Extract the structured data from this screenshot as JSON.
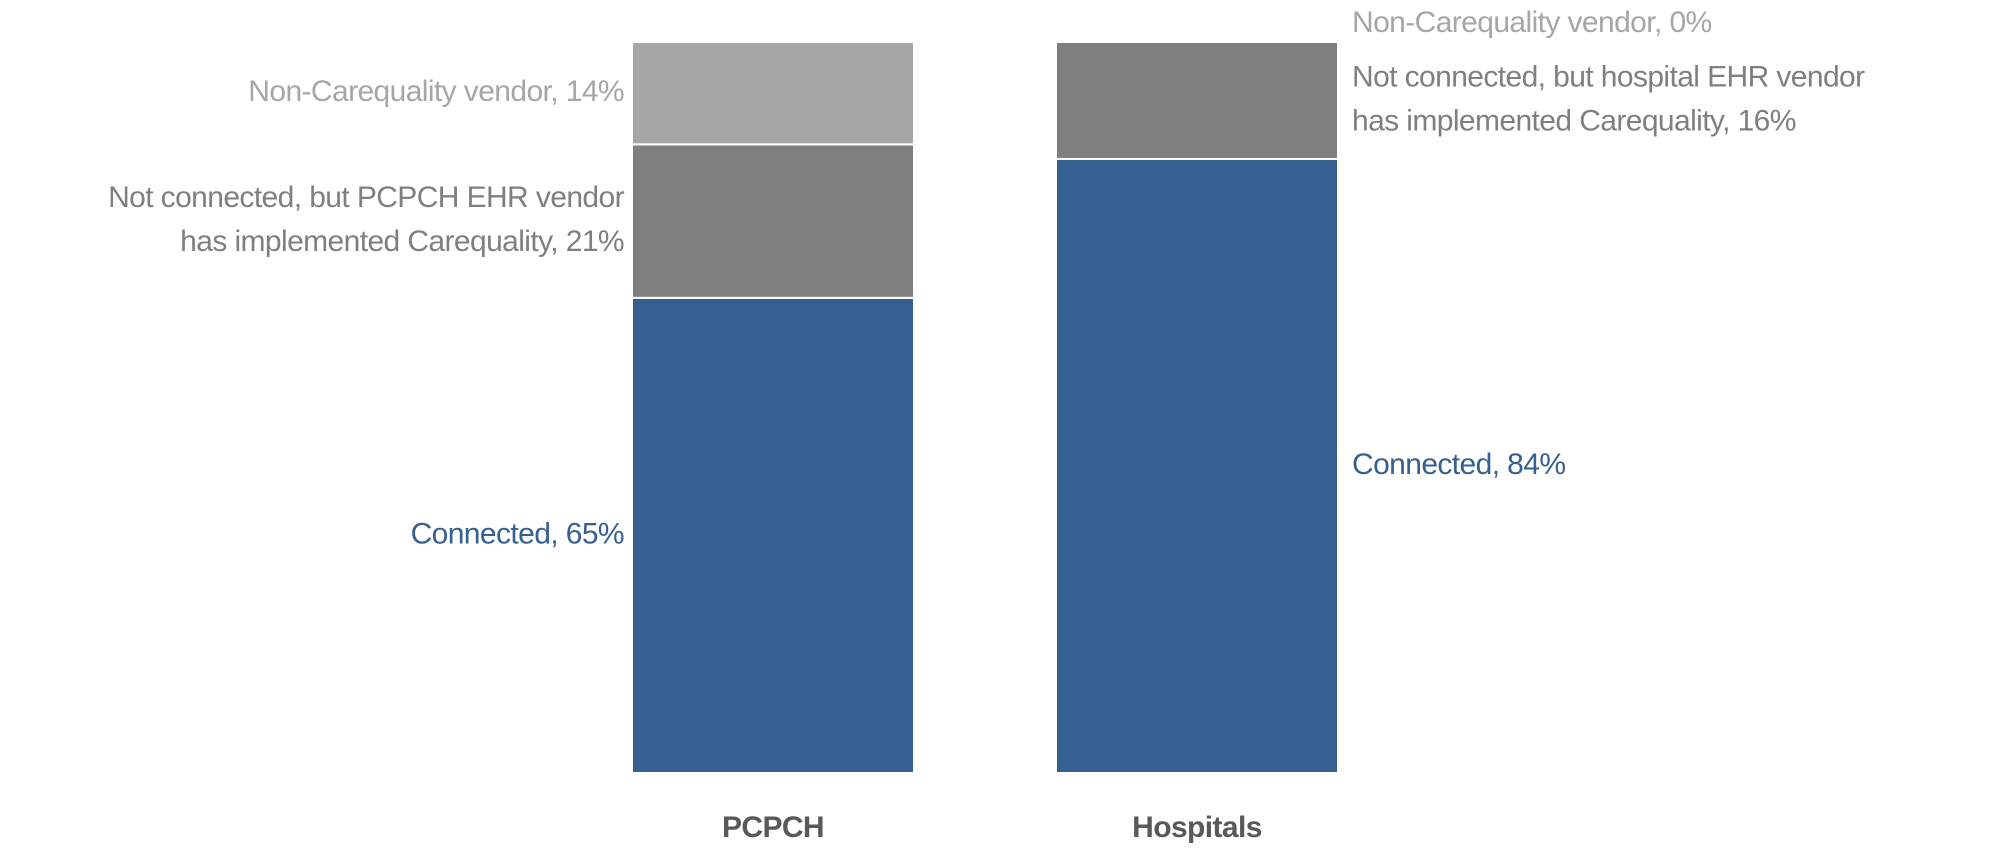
{
  "chart_data": {
    "type": "stacked_bar",
    "categories": [
      "PCPCH",
      "Hospitals"
    ],
    "ylim": [
      0,
      100
    ],
    "series": [
      {
        "color": "#36608f",
        "values": [
          65,
          84
        ],
        "value_labels": [
          [
            "Connected, 65%"
          ],
          [
            "Connected, 84%"
          ]
        ]
      },
      {
        "color": "#7f7f7f",
        "values": [
          21,
          16
        ],
        "value_labels": [
          [
            "Not connected, but PCPCH  EHR vendor",
            "has implemented Carequality, 21%"
          ],
          [
            "Not connected, but hospital EHR vendor",
            "has implemented Carequality, 16%"
          ]
        ]
      },
      {
        "color": "#a6a6a6",
        "values": [
          14,
          0
        ],
        "value_labels": [
          [
            "Non-Carequality vendor, 14%"
          ],
          [
            "Non-Carequality vendor, 0%"
          ]
        ]
      }
    ]
  }
}
